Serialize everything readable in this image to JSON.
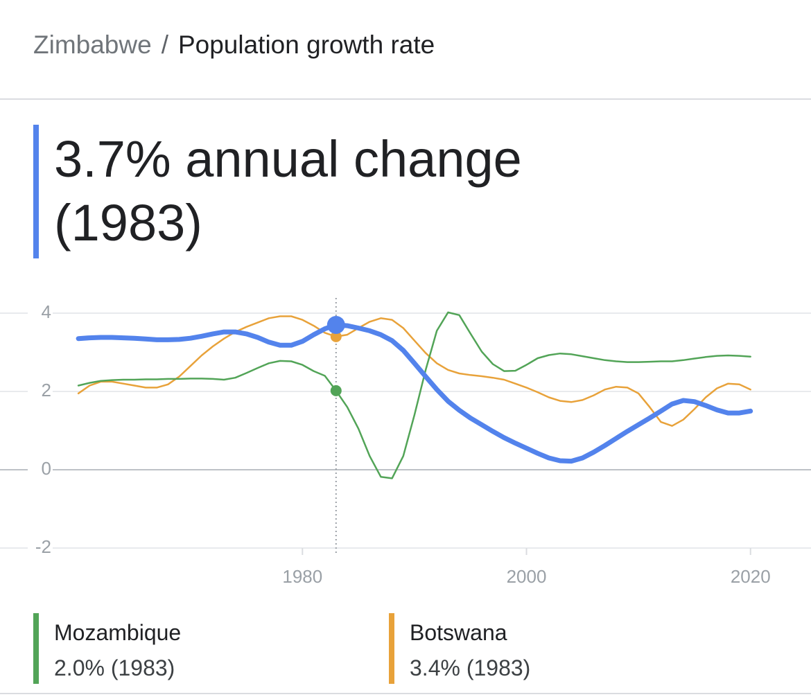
{
  "breadcrumb": {
    "parent": "Zimbabwe",
    "separator": "/",
    "current": "Population growth rate"
  },
  "headline": "3.7% annual change (1983)",
  "chart_data": {
    "type": "line",
    "x": [
      1960,
      1961,
      1962,
      1963,
      1964,
      1965,
      1966,
      1967,
      1968,
      1969,
      1970,
      1971,
      1972,
      1973,
      1974,
      1975,
      1976,
      1977,
      1978,
      1979,
      1980,
      1981,
      1982,
      1983,
      1984,
      1985,
      1986,
      1987,
      1988,
      1989,
      1990,
      1991,
      1992,
      1993,
      1994,
      1995,
      1996,
      1997,
      1998,
      1999,
      2000,
      2001,
      2002,
      2003,
      2004,
      2005,
      2006,
      2007,
      2008,
      2009,
      2010,
      2011,
      2012,
      2013,
      2014,
      2015,
      2016,
      2017,
      2018,
      2019,
      2020
    ],
    "series": [
      {
        "name": "Zimbabwe",
        "color": "#5383ec",
        "values": [
          3.35,
          3.37,
          3.38,
          3.38,
          3.37,
          3.36,
          3.34,
          3.32,
          3.32,
          3.33,
          3.36,
          3.41,
          3.47,
          3.52,
          3.52,
          3.47,
          3.38,
          3.26,
          3.18,
          3.18,
          3.28,
          3.45,
          3.6,
          3.7,
          3.68,
          3.62,
          3.55,
          3.45,
          3.3,
          3.05,
          2.72,
          2.38,
          2.05,
          1.75,
          1.52,
          1.32,
          1.15,
          0.98,
          0.82,
          0.68,
          0.55,
          0.42,
          0.3,
          0.23,
          0.22,
          0.3,
          0.45,
          0.62,
          0.8,
          0.98,
          1.15,
          1.32,
          1.5,
          1.68,
          1.77,
          1.74,
          1.64,
          1.53,
          1.45,
          1.45,
          1.5
        ]
      },
      {
        "name": "Mozambique",
        "color": "#52a457",
        "values": [
          2.15,
          2.22,
          2.27,
          2.29,
          2.3,
          2.3,
          2.31,
          2.31,
          2.32,
          2.32,
          2.33,
          2.33,
          2.32,
          2.3,
          2.35,
          2.47,
          2.6,
          2.72,
          2.78,
          2.77,
          2.68,
          2.52,
          2.4,
          2.02,
          1.6,
          1.05,
          0.35,
          -0.18,
          -0.22,
          0.35,
          1.4,
          2.55,
          3.55,
          4.02,
          3.95,
          3.48,
          3.02,
          2.7,
          2.52,
          2.53,
          2.68,
          2.85,
          2.93,
          2.97,
          2.95,
          2.9,
          2.85,
          2.8,
          2.77,
          2.75,
          2.75,
          2.76,
          2.77,
          2.77,
          2.8,
          2.84,
          2.88,
          2.91,
          2.92,
          2.91,
          2.89
        ],
        "legend_label": "2.0% (1983)"
      },
      {
        "name": "Botswana",
        "color": "#e8a23a",
        "values": [
          1.95,
          2.15,
          2.25,
          2.25,
          2.2,
          2.15,
          2.1,
          2.1,
          2.18,
          2.38,
          2.65,
          2.92,
          3.15,
          3.35,
          3.52,
          3.65,
          3.76,
          3.87,
          3.92,
          3.92,
          3.83,
          3.68,
          3.5,
          3.4,
          3.45,
          3.62,
          3.78,
          3.87,
          3.83,
          3.62,
          3.3,
          2.98,
          2.72,
          2.55,
          2.46,
          2.42,
          2.39,
          2.35,
          2.3,
          2.2,
          2.1,
          1.98,
          1.85,
          1.76,
          1.73,
          1.78,
          1.9,
          2.05,
          2.12,
          2.1,
          1.95,
          1.6,
          1.22,
          1.12,
          1.28,
          1.55,
          1.85,
          2.08,
          2.2,
          2.18,
          2.05
        ],
        "legend_label": "3.4% (1983)"
      }
    ],
    "highlight_index": 23,
    "xlim": [
      1953,
      2025.4
    ],
    "xticks": [
      1980,
      2000,
      2020
    ],
    "ylim": [
      -2,
      4
    ],
    "yticks": [
      4,
      2,
      0,
      -2
    ],
    "grid": true
  }
}
